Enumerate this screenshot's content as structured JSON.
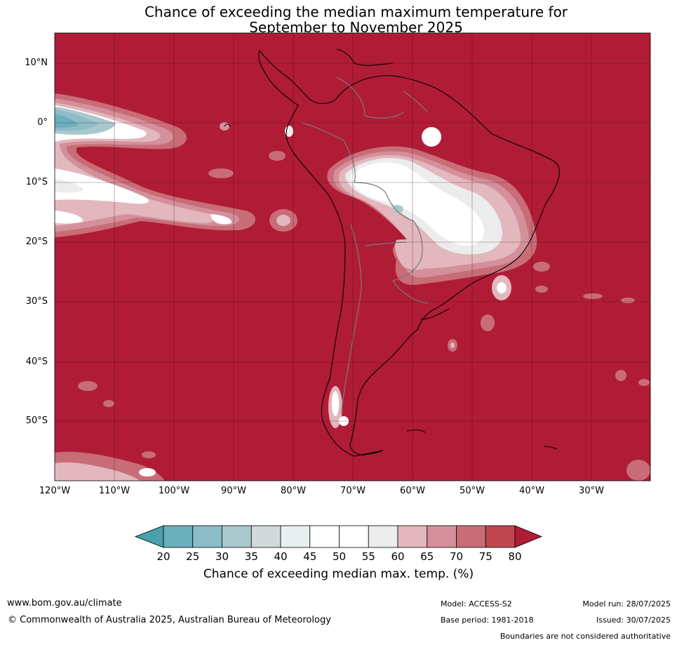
{
  "title_line1": "Chance of exceeding the median maximum temperature for",
  "title_line2": "September to November 2025",
  "lat_labels": [
    "10°N",
    "0°",
    "10°S",
    "20°S",
    "30°S",
    "40°S",
    "50°S"
  ],
  "lon_labels": [
    "120°W",
    "110°W",
    "100°W",
    "90°W",
    "80°W",
    "70°W",
    "60°W",
    "50°W",
    "40°W",
    "30°W"
  ],
  "colorbar": {
    "ticks": [
      "20",
      "25",
      "30",
      "35",
      "40",
      "45",
      "50",
      "55",
      "60",
      "65",
      "70",
      "75",
      "80"
    ],
    "label": "Chance of exceeding median max. temp. (%)",
    "colors": {
      "below20": "#4aa0ad",
      "20-25": "#6aafbb",
      "25-30": "#8bbcc7",
      "30-35": "#a9c8cd",
      "35-40": "#d2d9da",
      "40-45": "#e9eff1",
      "45-50": "#ffffff",
      "50-55": "#ffffff",
      "55-60": "#ececec",
      "60-65": "#e2b7bd",
      "65-70": "#d4909a",
      "70-75": "#c86d78",
      "75-80": "#c0464f",
      "above80": "#b01c36"
    }
  },
  "footer": {
    "website": "www.bom.gov.au/climate",
    "copyright": "© Commonwealth of Australia 2025, Australian Bureau of Meteorology",
    "model": "Model: ACCESS-S2",
    "base_period": "Base period: 1981-2018",
    "model_run": "Model run: 28/07/2025",
    "issued": "Issued: 30/07/2025",
    "disclaimer": "Boundaries are not considered authoritative"
  }
}
